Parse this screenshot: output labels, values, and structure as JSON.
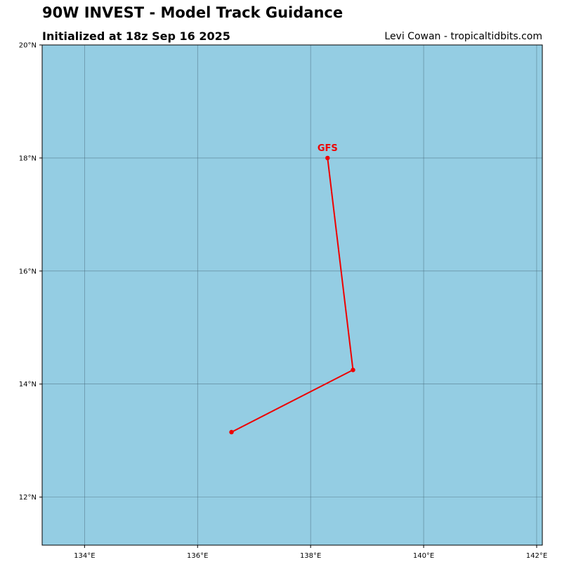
{
  "header": {
    "title": "90W INVEST - Model Track Guidance",
    "subtitle": "Initialized at 18z Sep 16 2025",
    "credit": "Levi Cowan - tropicaltidbits.com"
  },
  "map": {
    "ocean_color": "#94cde3",
    "grid_color": "#3f5f6f",
    "track_color": "#ee0000",
    "lon_range": [
      133.25,
      142.1
    ],
    "lat_range": [
      11.15,
      20.0
    ],
    "lon_ticks": [
      {
        "value": 134,
        "label": "134°E"
      },
      {
        "value": 136,
        "label": "136°E"
      },
      {
        "value": 138,
        "label": "138°E"
      },
      {
        "value": 140,
        "label": "140°E"
      },
      {
        "value": 142,
        "label": "142°E"
      }
    ],
    "lat_ticks": [
      {
        "value": 12,
        "label": "12°N"
      },
      {
        "value": 14,
        "label": "14°N"
      },
      {
        "value": 16,
        "label": "16°N"
      },
      {
        "value": 18,
        "label": "18°N"
      },
      {
        "value": 20,
        "label": "20°N"
      }
    ],
    "tracks": [
      {
        "model": "GFS",
        "points": [
          {
            "lon": 136.6,
            "lat": 13.15
          },
          {
            "lon": 138.75,
            "lat": 14.25
          },
          {
            "lon": 138.3,
            "lat": 18.0
          }
        ]
      }
    ]
  }
}
